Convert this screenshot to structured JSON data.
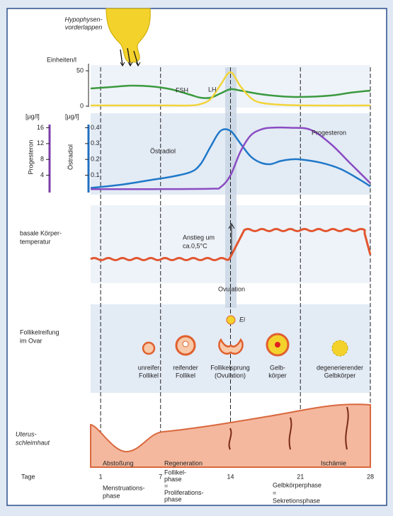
{
  "pituitary": {
    "label": [
      "Hypophysen-",
      "vorderlappen"
    ]
  },
  "gonadotropins": {
    "axis_label": "Einheiten/l",
    "xlim": [
      0,
      28
    ],
    "ylim": [
      0,
      60
    ],
    "yticks": [
      0,
      50
    ],
    "series": [
      {
        "name": "FSH",
        "color": "#3b9a3f",
        "x": [
          0,
          2,
          4,
          6,
          8,
          10,
          11,
          12,
          13,
          14,
          15,
          17,
          19,
          21,
          24,
          26,
          28
        ],
        "values": [
          25,
          27,
          29,
          28,
          24,
          16,
          12,
          12,
          18,
          24,
          22,
          17,
          14,
          13,
          15,
          19,
          22
        ]
      },
      {
        "name": "LH",
        "color": "#f2d43a",
        "x": [
          0,
          4,
          8,
          10,
          11,
          12,
          13,
          14,
          15,
          16,
          17,
          19,
          22,
          28
        ],
        "values": [
          1,
          1,
          1,
          1,
          3,
          10,
          30,
          48,
          28,
          12,
          5,
          2,
          1,
          1
        ]
      }
    ]
  },
  "steroids": {
    "ylabel": "Östradiol",
    "yunit": "[µg/l]",
    "ylim": [
      0,
      0.42
    ],
    "yticks": [
      0.1,
      0.2,
      0.3,
      0.4
    ],
    "ycolor": "#1f6fc0",
    "y2label": "Progesteron",
    "y2unit": "[µg/l]",
    "y2lim": [
      0,
      16.8
    ],
    "y2ticks": [
      4,
      8,
      12,
      16
    ],
    "y2color": "#7b3fa8",
    "series": [
      {
        "name": "Östradiol",
        "color": "#1f78c8",
        "x": [
          0,
          3,
          6,
          8,
          10,
          11,
          12,
          13,
          14,
          15,
          16,
          17,
          18,
          19,
          20,
          21,
          23,
          25,
          27,
          28
        ],
        "values": [
          0.02,
          0.04,
          0.07,
          0.09,
          0.12,
          0.17,
          0.28,
          0.38,
          0.38,
          0.3,
          0.22,
          0.18,
          0.17,
          0.19,
          0.2,
          0.2,
          0.18,
          0.14,
          0.07,
          0.03
        ]
      },
      {
        "name": "Progesteron",
        "axis": "y2",
        "color": "#8a4cc2",
        "x": [
          0,
          6,
          12,
          13,
          14,
          15,
          16,
          17,
          18,
          20,
          22,
          24,
          26,
          28
        ],
        "values": [
          0.5,
          0.5,
          0.6,
          1,
          4,
          10,
          14,
          15.5,
          16,
          16,
          15.5,
          12,
          7,
          2
        ]
      }
    ]
  },
  "temperature": {
    "label": [
      "basale Körper-",
      "temperatur"
    ],
    "annotation": [
      "Anstieg um",
      "ca.0,5°C"
    ],
    "ovulation": "Ovulation"
  },
  "ovary": {
    "label": [
      "Follikelreifung",
      "im Ovar"
    ],
    "egg": "Ei",
    "stages": [
      [
        "unreifer",
        "Follikel"
      ],
      [
        "reifender",
        "Follikel"
      ],
      [
        "Follikelsprung",
        "(Ovulation)"
      ],
      [
        "Gelb-",
        "körper"
      ],
      [
        "degenerierender",
        "Gelbkörper"
      ]
    ]
  },
  "uterus": {
    "label": [
      "Uterus-",
      "schleimhaut"
    ],
    "phases": [
      "Abstoßung",
      "Regeneration",
      "Ischämie"
    ]
  },
  "days": {
    "label": "Tage",
    "ticks": [
      1,
      7,
      14,
      21,
      28
    ]
  },
  "phases": [
    [
      "Menstruations-",
      "phase"
    ],
    [
      "Follikel-",
      "phase",
      "=",
      "Proliferations-",
      "phase"
    ],
    [
      "Gelbkörperphase",
      "=",
      "Sekretionsphase"
    ]
  ]
}
